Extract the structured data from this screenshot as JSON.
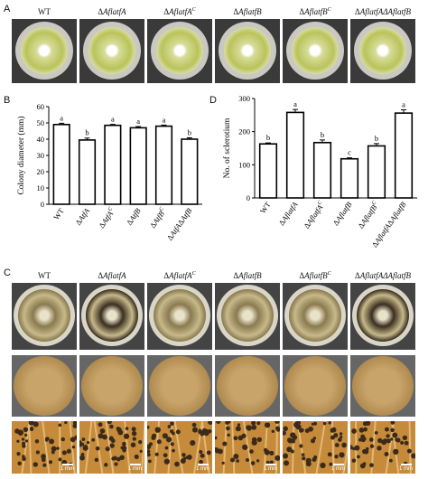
{
  "panels": {
    "A": "A",
    "B": "B",
    "C": "C",
    "D": "D"
  },
  "strain_headers": [
    {
      "pre": "",
      "main": "WT",
      "sup": "",
      "italic": false
    },
    {
      "pre": "Δ",
      "main": "AflatfA",
      "sup": "",
      "italic": true
    },
    {
      "pre": "Δ",
      "main": "AflatfA",
      "sup": "C",
      "italic": true
    },
    {
      "pre": "Δ",
      "main": "AflatfB",
      "sup": "",
      "italic": true
    },
    {
      "pre": "Δ",
      "main": "AflatfB",
      "sup": "C",
      "italic": true
    },
    {
      "pre": "Δ",
      "main": "AflatfAΔAflatfB",
      "sup": "",
      "italic": true
    }
  ],
  "scale_label": "1 mm",
  "chart_data": [
    {
      "type": "bar",
      "panel": "B",
      "ylabel": "Colony diameter (mm)",
      "ylim": [
        0,
        60
      ],
      "yticks": [
        0,
        10,
        20,
        30,
        40,
        50,
        60
      ],
      "categories": [
        "WT",
        "ΔAtfA",
        "ΔAtfA^C",
        "ΔAtfB",
        "ΔAtfB^C",
        "ΔAtfAΔAtfB"
      ],
      "values": [
        49,
        39.5,
        48.5,
        47,
        48,
        40
      ],
      "errors": [
        0.8,
        1.2,
        0.6,
        0.8,
        0.7,
        0.8
      ],
      "letters": [
        "a",
        "b",
        "a",
        "a",
        "a",
        "b"
      ]
    },
    {
      "type": "bar",
      "panel": "D",
      "ylabel": "No. of sclerotium",
      "ylim": [
        0,
        300
      ],
      "yticks": [
        0,
        100,
        200,
        300
      ],
      "categories": [
        "WT",
        "ΔAflatfA",
        "ΔAflatfA^C",
        "ΔAflatfB",
        "ΔAflatfB^C",
        "ΔAflatfAΔAflatfB"
      ],
      "values": [
        163,
        258,
        167,
        118,
        157,
        256
      ],
      "errors": [
        3,
        9,
        8,
        3,
        7,
        10
      ],
      "letters": [
        "b",
        "a",
        "b",
        "c",
        "b",
        "a"
      ]
    }
  ],
  "colors": {
    "dish_bg": "#2b2b2b",
    "colony_green": "#b9c45a",
    "colony_cream": "#d7cf9c",
    "colony_brown": "#b08a4f",
    "sclerotia": "#3a2a1a",
    "hyphae_bg": "#c58a3a"
  }
}
